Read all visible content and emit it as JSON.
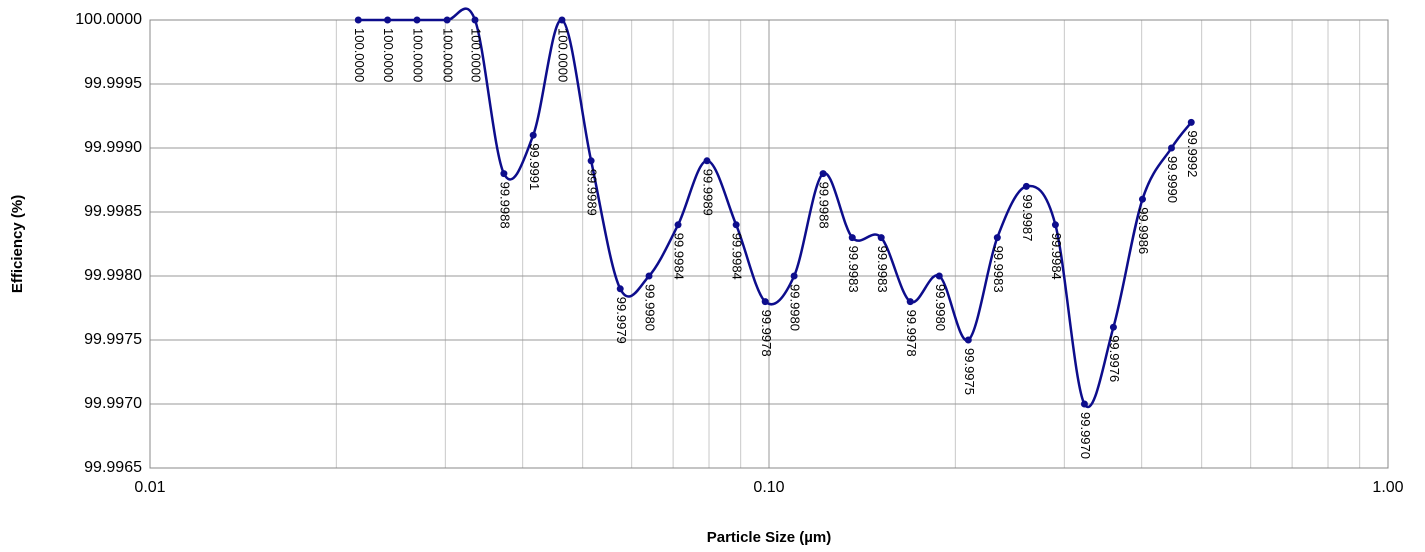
{
  "chart_data": {
    "type": "line",
    "x_label": "Particle Size (µm)",
    "y_label": "Efficiency (%)",
    "x_log": true,
    "grid": true,
    "smooth": true,
    "color": "#0d0d8c",
    "xlim": [
      0.01,
      1.0
    ],
    "xticks": [
      {
        "value": 0.01,
        "label": "0.01"
      },
      {
        "value": 0.1,
        "label": "0.10"
      },
      {
        "value": 1.0,
        "label": "1.00"
      }
    ],
    "xminorticks": [
      0.02,
      0.03,
      0.04,
      0.05,
      0.06,
      0.07,
      0.08,
      0.09,
      0.2,
      0.3,
      0.4,
      0.5,
      0.6,
      0.7,
      0.8,
      0.9
    ],
    "ylim": [
      99.9965,
      100.0
    ],
    "yticks": [
      {
        "value": 99.9965,
        "label": "99.9965"
      },
      {
        "value": 99.997,
        "label": "99.9970"
      },
      {
        "value": 99.9975,
        "label": "99.9975"
      },
      {
        "value": 99.998,
        "label": "99.9980"
      },
      {
        "value": 99.9985,
        "label": "99.9985"
      },
      {
        "value": 99.999,
        "label": "99.9990"
      },
      {
        "value": 99.9995,
        "label": "99.9995"
      },
      {
        "value": 100.0,
        "label": "100.0000"
      }
    ],
    "x": [
      0.0217,
      0.0242,
      0.027,
      0.0302,
      0.0335,
      0.0373,
      0.0416,
      0.0463,
      0.0516,
      0.0575,
      0.064,
      0.0713,
      0.0794,
      0.0885,
      0.0986,
      0.1098,
      0.1223,
      0.1363,
      0.1518,
      0.1691,
      0.1884,
      0.2099,
      0.2338,
      0.2605,
      0.2902,
      0.3233,
      0.3601,
      0.4012,
      0.4469,
      0.481
    ],
    "values": [
      100.0,
      100.0,
      100.0,
      100.0,
      100.0,
      99.9988,
      99.9991,
      100.0,
      99.9989,
      99.9979,
      99.998,
      99.9984,
      99.9989,
      99.9984,
      99.9978,
      99.998,
      99.9988,
      99.9983,
      99.9983,
      99.9978,
      99.998,
      99.9975,
      99.9983,
      99.9987,
      99.9984,
      99.997,
      99.9976,
      99.9986,
      99.999,
      99.9992
    ],
    "value_labels": [
      "100.0000",
      "100.0000",
      "100.0000",
      "100.0000",
      "100.0000",
      "99.9988",
      "99.9991",
      "100.0000",
      "99.9989",
      "99.9979",
      "99.9980",
      "99.9984",
      "99.9989",
      "99.9984",
      "99.9978",
      "99.9980",
      "99.9988",
      "99.9983",
      "99.9983",
      "99.9978",
      "99.9980",
      "99.9975",
      "99.9983",
      "99.9987",
      "99.9984",
      "99.9970",
      "99.9976",
      "99.9986",
      "99.9990",
      "99.9992"
    ]
  }
}
